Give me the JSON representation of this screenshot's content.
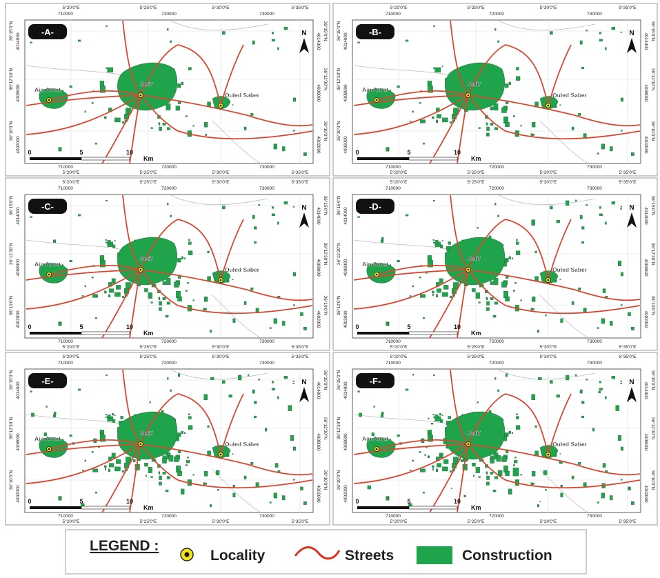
{
  "panels": [
    "-A-",
    "-B-",
    "-C-",
    "-D-",
    "-E-",
    "-F-"
  ],
  "longitudes": [
    "5°20'0\"E",
    "5°25'0\"E",
    "5°30'0\"E",
    "5°35'0\"E"
  ],
  "latitudes": [
    "36°15'0\"N",
    "36°12'30\"N",
    "36°10'0\"N"
  ],
  "eastings": [
    "710000",
    "720000",
    "730000"
  ],
  "northings": [
    "4014000",
    "4008000",
    "4002000"
  ],
  "places": [
    "Ain Arnat",
    "Setif",
    "Ouled Saber"
  ],
  "scale": {
    "labels": [
      "0",
      "5",
      "10"
    ],
    "unit": "Km"
  },
  "north": "N",
  "legend": {
    "title": "LEGEND :",
    "items": [
      "Locality",
      "Streets",
      "Construction"
    ]
  }
}
